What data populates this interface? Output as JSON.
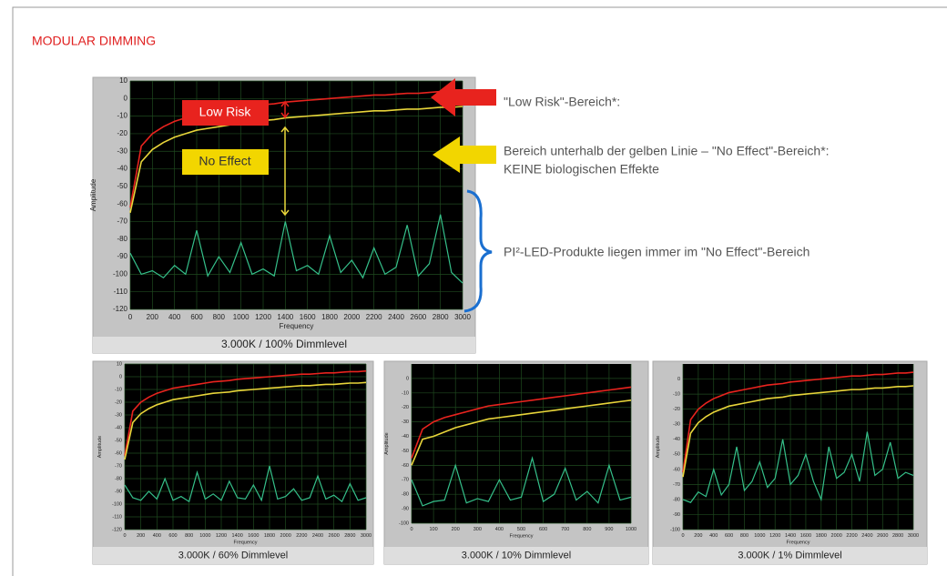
{
  "title": "MODULAR DIMMING",
  "notes": [
    "\"Low Risk\"-Bereich*:",
    "Bereich unterhalb  der gelben Linie – \"No Effect\"-Bereich*:",
    "KEINE biologischen Effekte",
    "PI²-LED-Produkte liegen immer im \"No Effect\"-Bereich"
  ],
  "chart_data": [
    {
      "type": "line",
      "caption": "3.000K / 100% Dimmlevel",
      "x_label": "Frequency",
      "y_label": "Amplitude",
      "annotations": [
        "Low Risk",
        "No Effect"
      ],
      "xlim": [
        0,
        3000
      ],
      "ylim": [
        -120,
        10
      ],
      "xticks": [
        0,
        200,
        400,
        600,
        800,
        1000,
        1200,
        1400,
        1600,
        1800,
        2000,
        2200,
        2400,
        2600,
        2800,
        3000
      ],
      "yticks": [
        10,
        0,
        -10,
        -20,
        -30,
        -40,
        -50,
        -60,
        -70,
        -80,
        -90,
        -100,
        -110,
        -120
      ],
      "x": [
        0,
        100,
        200,
        300,
        400,
        500,
        600,
        700,
        800,
        900,
        1000,
        1100,
        1200,
        1300,
        1400,
        1500,
        1600,
        1700,
        1800,
        1900,
        2000,
        2100,
        2200,
        2300,
        2400,
        2500,
        2600,
        2700,
        2800,
        2900,
        3000
      ],
      "series": [
        {
          "color": "#e8231e",
          "values": [
            -62,
            -27,
            -20,
            -16,
            -13,
            -11,
            -9,
            -8,
            -7,
            -6,
            -5,
            -4,
            -3.5,
            -3,
            -2,
            -1.5,
            -1,
            -0.5,
            0,
            0.5,
            1,
            1.5,
            2,
            2,
            2.5,
            3,
            3,
            3.5,
            4,
            4,
            4.5
          ]
        },
        {
          "color": "#e8d53a",
          "values": [
            -65,
            -36,
            -29,
            -25,
            -22,
            -20,
            -18,
            -17,
            -16,
            -15,
            -14,
            -13,
            -12.5,
            -12,
            -11,
            -10.5,
            -10,
            -9.5,
            -9,
            -8.5,
            -8,
            -7.5,
            -7,
            -7,
            -6.5,
            -6,
            -6,
            -5.5,
            -5,
            -5,
            -4.5
          ]
        },
        {
          "color": "#35c08a",
          "values": [
            -88,
            -100,
            -98,
            -102,
            -95,
            -100,
            -75,
            -101,
            -90,
            -99,
            -82,
            -100,
            -97,
            -101,
            -70,
            -98,
            -95,
            -100,
            -78,
            -99,
            -92,
            -102,
            -85,
            -100,
            -96,
            -72,
            -101,
            -94,
            -66,
            -99,
            -105
          ]
        }
      ]
    },
    {
      "type": "line",
      "caption": "3.000K / 60% Dimmlevel",
      "x_label": "Frequency",
      "y_label": "Amplitude",
      "xlim": [
        0,
        3000
      ],
      "ylim": [
        -120,
        10
      ],
      "xticks": [
        0,
        200,
        400,
        600,
        800,
        1000,
        1200,
        1400,
        1600,
        1800,
        2000,
        2200,
        2400,
        2600,
        2800,
        3000
      ],
      "yticks": [
        10,
        0,
        -10,
        -20,
        -30,
        -40,
        -50,
        -60,
        -70,
        -80,
        -90,
        -100,
        -110,
        -120
      ],
      "x": [
        0,
        100,
        200,
        300,
        400,
        500,
        600,
        700,
        800,
        900,
        1000,
        1100,
        1200,
        1300,
        1400,
        1500,
        1600,
        1700,
        1800,
        1900,
        2000,
        2100,
        2200,
        2300,
        2400,
        2500,
        2600,
        2700,
        2800,
        2900,
        3000
      ],
      "series": [
        {
          "color": "#e8231e",
          "values": [
            -62,
            -27,
            -20,
            -16,
            -13,
            -11,
            -9,
            -8,
            -7,
            -6,
            -5,
            -4,
            -3.5,
            -3,
            -2,
            -1.5,
            -1,
            -0.5,
            0,
            0.5,
            1,
            1.5,
            2,
            2,
            2.5,
            3,
            3,
            3.5,
            4,
            4,
            4.5
          ]
        },
        {
          "color": "#e8d53a",
          "values": [
            -65,
            -36,
            -29,
            -25,
            -22,
            -20,
            -18,
            -17,
            -16,
            -15,
            -14,
            -13,
            -12.5,
            -12,
            -11,
            -10.5,
            -10,
            -9.5,
            -9,
            -8.5,
            -8,
            -7.5,
            -7,
            -7,
            -6.5,
            -6,
            -6,
            -5.5,
            -5,
            -5,
            -4.5
          ]
        },
        {
          "color": "#35c08a",
          "values": [
            -85,
            -95,
            -97,
            -90,
            -96,
            -80,
            -97,
            -94,
            -98,
            -75,
            -96,
            -92,
            -97,
            -82,
            -95,
            -96,
            -85,
            -97,
            -70,
            -96,
            -94,
            -88,
            -97,
            -95,
            -78,
            -96,
            -93,
            -98,
            -84,
            -97,
            -95
          ]
        }
      ]
    },
    {
      "type": "line",
      "caption": "3.000K / 10% Dimmlevel",
      "x_label": "Frequency",
      "y_label": "Amplitude",
      "xlim": [
        0,
        1000
      ],
      "ylim": [
        -100,
        10
      ],
      "xticks": [
        0,
        100,
        200,
        300,
        400,
        500,
        600,
        700,
        800,
        900,
        1000
      ],
      "yticks": [
        0,
        -10,
        -20,
        -30,
        -40,
        -50,
        -60,
        -70,
        -80,
        -90,
        -100
      ],
      "x": [
        0,
        50,
        100,
        150,
        200,
        250,
        300,
        350,
        400,
        450,
        500,
        550,
        600,
        650,
        700,
        750,
        800,
        850,
        900,
        950,
        1000
      ],
      "series": [
        {
          "color": "#e8231e",
          "values": [
            -55,
            -35,
            -30,
            -27,
            -25,
            -23,
            -21,
            -19,
            -18,
            -17,
            -16,
            -15,
            -14,
            -13,
            -12,
            -11,
            -10,
            -9,
            -8,
            -7,
            -6
          ]
        },
        {
          "color": "#e8d53a",
          "values": [
            -60,
            -42,
            -40,
            -37,
            -34,
            -32,
            -30,
            -28,
            -27,
            -26,
            -25,
            -24,
            -23,
            -22,
            -21,
            -20,
            -19,
            -18,
            -17,
            -16,
            -15
          ]
        },
        {
          "color": "#35c08a",
          "values": [
            -70,
            -88,
            -85,
            -84,
            -60,
            -86,
            -83,
            -85,
            -70,
            -84,
            -82,
            -55,
            -85,
            -80,
            -62,
            -84,
            -78,
            -86,
            -60,
            -84,
            -82
          ]
        }
      ]
    },
    {
      "type": "line",
      "caption": "3.000K / 1% Dimmlevel",
      "x_label": "Frequency",
      "y_label": "Amplitude",
      "xlim": [
        0,
        3000
      ],
      "ylim": [
        -100,
        10
      ],
      "xticks": [
        0,
        200,
        400,
        600,
        800,
        1000,
        1200,
        1400,
        1600,
        1800,
        2000,
        2200,
        2400,
        2600,
        2800,
        3000
      ],
      "yticks": [
        0,
        -10,
        -20,
        -30,
        -40,
        -50,
        -60,
        -70,
        -80,
        -90,
        -100
      ],
      "x": [
        0,
        100,
        200,
        300,
        400,
        500,
        600,
        700,
        800,
        900,
        1000,
        1100,
        1200,
        1300,
        1400,
        1500,
        1600,
        1700,
        1800,
        1900,
        2000,
        2100,
        2200,
        2300,
        2400,
        2500,
        2600,
        2700,
        2800,
        2900,
        3000
      ],
      "series": [
        {
          "color": "#e8231e",
          "values": [
            -62,
            -27,
            -20,
            -16,
            -13,
            -11,
            -9,
            -8,
            -7,
            -6,
            -5,
            -4,
            -3.5,
            -3,
            -2,
            -1.5,
            -1,
            -0.5,
            0,
            0.5,
            1,
            1.5,
            2,
            2,
            2.5,
            3,
            3,
            3.5,
            4,
            4,
            4.5
          ]
        },
        {
          "color": "#e8d53a",
          "values": [
            -65,
            -36,
            -29,
            -25,
            -22,
            -20,
            -18,
            -17,
            -16,
            -15,
            -14,
            -13,
            -12.5,
            -12,
            -11,
            -10.5,
            -10,
            -9.5,
            -9,
            -8.5,
            -8,
            -7.5,
            -7,
            -7,
            -6.5,
            -6,
            -6,
            -5.5,
            -5,
            -5,
            -4.5
          ]
        },
        {
          "color": "#35c08a",
          "values": [
            -80,
            -82,
            -75,
            -78,
            -60,
            -77,
            -70,
            -45,
            -74,
            -68,
            -55,
            -72,
            -66,
            -40,
            -70,
            -64,
            -50,
            -68,
            -80,
            -45,
            -66,
            -62,
            -50,
            -68,
            -35,
            -64,
            -60,
            -42,
            -66,
            -62,
            -64
          ]
        }
      ]
    }
  ]
}
